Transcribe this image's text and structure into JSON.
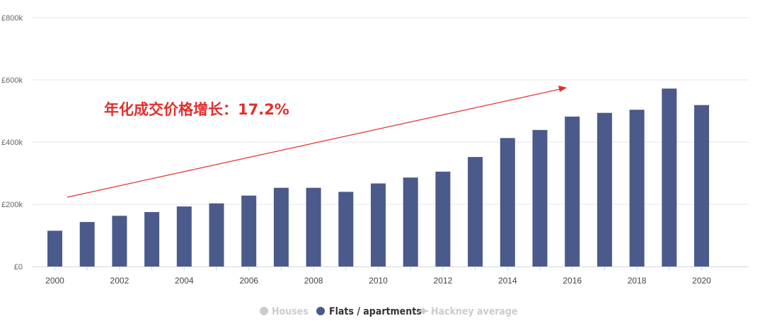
{
  "chart_data": {
    "type": "bar",
    "categories": [
      "2000",
      "2001",
      "2002",
      "2003",
      "2004",
      "2005",
      "2006",
      "2007",
      "2008",
      "2009",
      "2010",
      "2011",
      "2012",
      "2013",
      "2014",
      "2015",
      "2016",
      "2017",
      "2018",
      "2019",
      "2020"
    ],
    "x_tick_labels": [
      "2000",
      "2002",
      "2004",
      "2006",
      "2008",
      "2010",
      "2012",
      "2014",
      "2016",
      "2018",
      "2020"
    ],
    "y_tick_labels": [
      "£0",
      "£200k",
      "£400k",
      "£600k",
      "£800k"
    ],
    "ylim": [
      0,
      800000
    ],
    "series": [
      {
        "name": "Flats / apartments",
        "color": "#4a5a8a",
        "values": [
          115000,
          143000,
          163000,
          175000,
          193000,
          203000,
          228000,
          253000,
          253000,
          240000,
          267000,
          286000,
          305000,
          352000,
          413000,
          439000,
          482000,
          494000,
          504000,
          572000,
          519000
        ]
      }
    ],
    "legend": {
      "position": "bottom-center",
      "items": [
        {
          "label": "Houses",
          "color": "#cccccc",
          "active": false,
          "marker": "circle"
        },
        {
          "label": "Flats / apartments",
          "color": "#4a5a8a",
          "active": true,
          "marker": "circle"
        },
        {
          "label": "Hackney average",
          "color": "#cccccc",
          "active": false,
          "marker": "line-diamond"
        }
      ]
    },
    "annotation": {
      "text": "年化成交价格增长：17.2%",
      "color": "#e0302c"
    },
    "grid": true
  }
}
